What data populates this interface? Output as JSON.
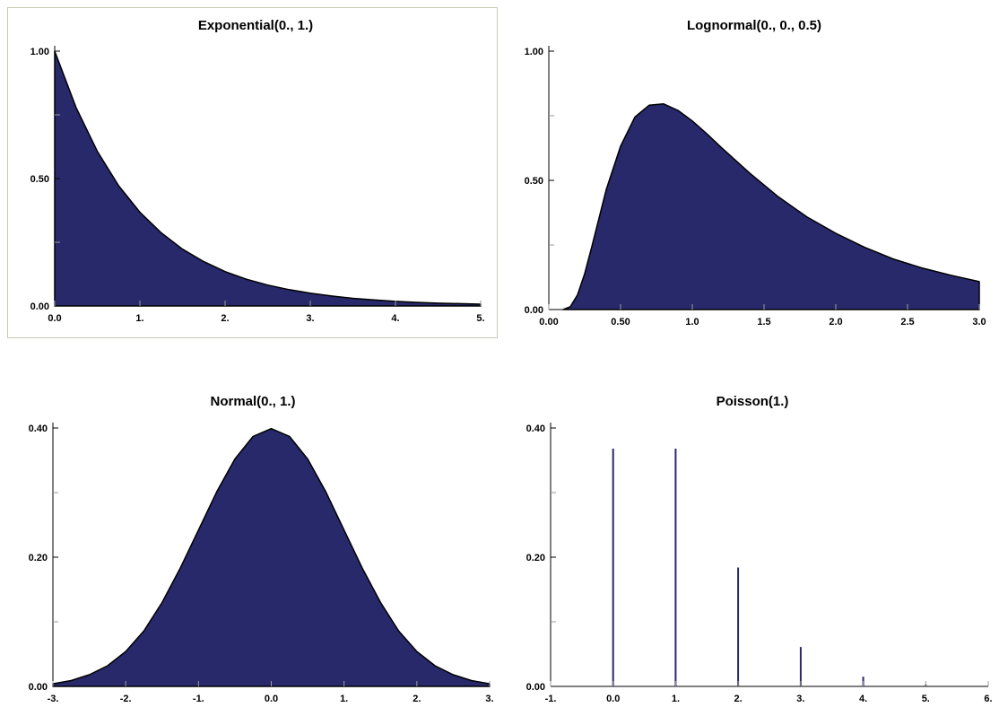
{
  "colors": {
    "fill": "#27296b",
    "outline": "#000000",
    "frame": "#c9c9b4"
  },
  "chart_data": [
    {
      "type": "area",
      "title": "Exponential(0., 1.)",
      "xlim": [
        0,
        5
      ],
      "ylim": [
        0,
        1
      ],
      "x_ticks": [
        0,
        1,
        2,
        3,
        4,
        5
      ],
      "x_tick_labels": [
        "0.0",
        "1.",
        "2.",
        "3.",
        "4.",
        "5."
      ],
      "y_ticks": [
        0,
        0.5,
        1
      ],
      "y_tick_labels": [
        "0.00",
        "0.50",
        "1.00"
      ],
      "y_minor_ticks": [
        0.25,
        0.75
      ],
      "x": [
        0,
        0.25,
        0.5,
        0.75,
        1,
        1.25,
        1.5,
        1.75,
        2,
        2.25,
        2.5,
        2.75,
        3,
        3.25,
        3.5,
        3.75,
        4,
        4.25,
        4.5,
        4.75,
        5
      ],
      "y": [
        1.0,
        0.779,
        0.607,
        0.472,
        0.368,
        0.287,
        0.223,
        0.174,
        0.135,
        0.105,
        0.082,
        0.064,
        0.05,
        0.039,
        0.03,
        0.024,
        0.018,
        0.014,
        0.011,
        0.009,
        0.007
      ],
      "grid": false,
      "framed": true
    },
    {
      "type": "area",
      "title": "Lognormal(0., 0., 0.5)",
      "xlim": [
        0,
        3
      ],
      "ylim": [
        0,
        1
      ],
      "x_ticks": [
        0,
        0.5,
        1,
        1.5,
        2,
        2.5,
        3
      ],
      "x_tick_labels": [
        "0.00",
        "0.50",
        "1.0",
        "1.5",
        "2.0",
        "2.5",
        "3.0"
      ],
      "y_ticks": [
        0,
        0.5,
        1
      ],
      "y_tick_labels": [
        "0.00",
        "0.50",
        "1.00"
      ],
      "y_minor_ticks": [
        0.25,
        0.75
      ],
      "x": [
        0.1,
        0.15,
        0.2,
        0.25,
        0.3,
        0.4,
        0.5,
        0.6,
        0.7,
        0.8,
        0.9,
        1.0,
        1.1,
        1.2,
        1.4,
        1.6,
        1.8,
        2.0,
        2.2,
        2.4,
        2.6,
        2.8,
        3.0
      ],
      "y": [
        0.0,
        0.011,
        0.057,
        0.139,
        0.244,
        0.464,
        0.632,
        0.745,
        0.791,
        0.796,
        0.771,
        0.73,
        0.681,
        0.628,
        0.528,
        0.436,
        0.358,
        0.295,
        0.241,
        0.196,
        0.161,
        0.133,
        0.108
      ],
      "grid": false,
      "framed": false
    },
    {
      "type": "area",
      "title": "Normal(0., 1.)",
      "xlim": [
        -3,
        3
      ],
      "ylim": [
        0,
        0.4
      ],
      "x_ticks": [
        -3,
        -2,
        -1,
        0,
        1,
        2,
        3
      ],
      "x_tick_labels": [
        "-3.",
        "-2.",
        "-1.",
        "0.0",
        "1.",
        "2.",
        "3."
      ],
      "y_ticks": [
        0,
        0.2,
        0.4
      ],
      "y_tick_labels": [
        "0.00",
        "0.20",
        "0.40"
      ],
      "y_minor_ticks": [
        0.1,
        0.3
      ],
      "x": [
        -3,
        -2.75,
        -2.5,
        -2.25,
        -2,
        -1.75,
        -1.5,
        -1.25,
        -1,
        -0.75,
        -0.5,
        -0.25,
        0,
        0.25,
        0.5,
        0.75,
        1,
        1.25,
        1.5,
        1.75,
        2,
        2.25,
        2.5,
        2.75,
        3
      ],
      "y": [
        0.004,
        0.009,
        0.018,
        0.032,
        0.054,
        0.086,
        0.13,
        0.183,
        0.242,
        0.301,
        0.352,
        0.387,
        0.399,
        0.387,
        0.352,
        0.301,
        0.242,
        0.183,
        0.13,
        0.086,
        0.054,
        0.032,
        0.018,
        0.009,
        0.004
      ],
      "grid": false,
      "framed": false
    },
    {
      "type": "bar",
      "title": "Poisson(1.)",
      "xlim": [
        -1,
        6
      ],
      "ylim": [
        0,
        0.4
      ],
      "x_ticks": [
        -1,
        0,
        1,
        2,
        3,
        4,
        5,
        6
      ],
      "x_tick_labels": [
        "-1.",
        "0.0",
        "1.",
        "2.",
        "3.",
        "4.",
        "5.",
        "6."
      ],
      "y_ticks": [
        0,
        0.2,
        0.4
      ],
      "y_tick_labels": [
        "0.00",
        "0.20",
        "0.40"
      ],
      "y_minor_ticks": [
        0.1,
        0.3
      ],
      "x": [
        0,
        1,
        2,
        3,
        4,
        5
      ],
      "y": [
        0.368,
        0.368,
        0.184,
        0.061,
        0.015,
        0.003
      ],
      "grid": false,
      "framed": false
    }
  ]
}
